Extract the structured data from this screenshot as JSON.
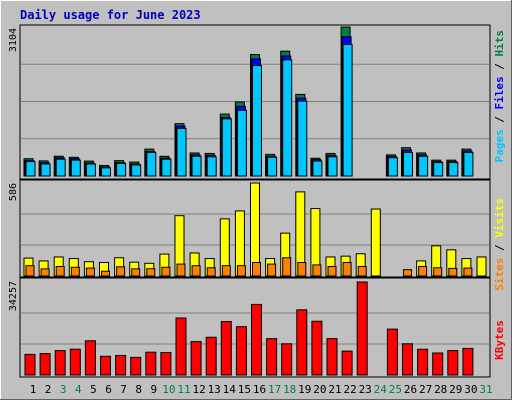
{
  "chart_data": [
    {
      "type": "bar",
      "title": "Daily usage for June 2023",
      "ylabel": "Pages / Files / Hits",
      "ymax_label": "3104",
      "ylim": [
        0,
        3104
      ],
      "categories": [
        "1",
        "2",
        "3",
        "4",
        "5",
        "6",
        "7",
        "8",
        "9",
        "10",
        "11",
        "12",
        "13",
        "14",
        "15",
        "16",
        "17",
        "18",
        "19",
        "20",
        "21",
        "22",
        "23",
        "24",
        "25",
        "26",
        "27",
        "28",
        "29",
        "30",
        "31"
      ],
      "weekend_days": [
        "3",
        "4",
        "10",
        "11",
        "17",
        "18",
        "24",
        "25",
        "31"
      ],
      "series": [
        {
          "name": "Hits",
          "color": "#008040",
          "values": [
            360,
            315,
            412,
            390,
            310,
            220,
            320,
            290,
            560,
            410,
            1090,
            480,
            470,
            1290,
            1540,
            2530,
            450,
            2600,
            1700,
            370,
            470,
            3104,
            0,
            0,
            440,
            590,
            480,
            330,
            330,
            560,
            0
          ]
        },
        {
          "name": "Files",
          "color": "#0000ff",
          "values": [
            320,
            280,
            380,
            360,
            270,
            190,
            280,
            250,
            510,
            370,
            1040,
            440,
            430,
            1220,
            1450,
            2440,
            410,
            2500,
            1620,
            340,
            430,
            2900,
            0,
            0,
            410,
            540,
            440,
            300,
            300,
            520,
            0
          ]
        },
        {
          "name": "Pages",
          "color": "#00c8ff",
          "values": [
            300,
            250,
            350,
            330,
            250,
            170,
            260,
            230,
            490,
            350,
            990,
            410,
            400,
            1190,
            1370,
            2300,
            390,
            2420,
            1560,
            310,
            400,
            2740,
            0,
            0,
            380,
            490,
            410,
            280,
            280,
            490,
            0
          ]
        }
      ]
    },
    {
      "type": "bar",
      "ylabel": "Sites / Visits",
      "ymax_label": "586",
      "ylim": [
        0,
        586
      ],
      "categories": [
        "1",
        "2",
        "3",
        "4",
        "5",
        "6",
        "7",
        "8",
        "9",
        "10",
        "11",
        "12",
        "13",
        "14",
        "15",
        "16",
        "17",
        "18",
        "19",
        "20",
        "21",
        "22",
        "23",
        "24",
        "25",
        "26",
        "27",
        "28",
        "29",
        "30",
        "31"
      ],
      "series": [
        {
          "name": "Visits",
          "color": "#ffff00",
          "values": [
            113,
            95,
            120,
            110,
            90,
            85,
            115,
            87,
            80,
            138,
            380,
            145,
            110,
            360,
            410,
            586,
            110,
            270,
            530,
            425,
            120,
            125,
            140,
            422,
            0,
            0,
            95,
            190,
            165,
            110,
            120
          ]
        },
        {
          "name": "Sites",
          "color": "#ff8000",
          "values": [
            65,
            45,
            60,
            55,
            50,
            30,
            58,
            45,
            46,
            55,
            75,
            65,
            52,
            65,
            65,
            85,
            75,
            115,
            85,
            70,
            60,
            85,
            60,
            0,
            0,
            40,
            60,
            52,
            48,
            50,
            0
          ]
        }
      ]
    },
    {
      "type": "bar",
      "ylabel": "KBytes",
      "ymax_label": "34257",
      "ylim": [
        0,
        34257
      ],
      "categories": [
        "1",
        "2",
        "3",
        "4",
        "5",
        "6",
        "7",
        "8",
        "9",
        "10",
        "11",
        "12",
        "13",
        "14",
        "15",
        "16",
        "17",
        "18",
        "19",
        "20",
        "21",
        "22",
        "23",
        "24",
        "25",
        "26",
        "27",
        "28",
        "29",
        "30",
        "31"
      ],
      "series": [
        {
          "name": "KBytes",
          "color": "#ff0000",
          "values": [
            7600,
            7900,
            9000,
            9500,
            12600,
            6900,
            7200,
            6500,
            8400,
            8300,
            21000,
            12300,
            13900,
            19700,
            17800,
            26000,
            13400,
            11500,
            24000,
            19800,
            13400,
            8800,
            34257,
            0,
            16900,
            11500,
            9500,
            8100,
            9000,
            9800,
            0
          ]
        }
      ]
    }
  ]
}
